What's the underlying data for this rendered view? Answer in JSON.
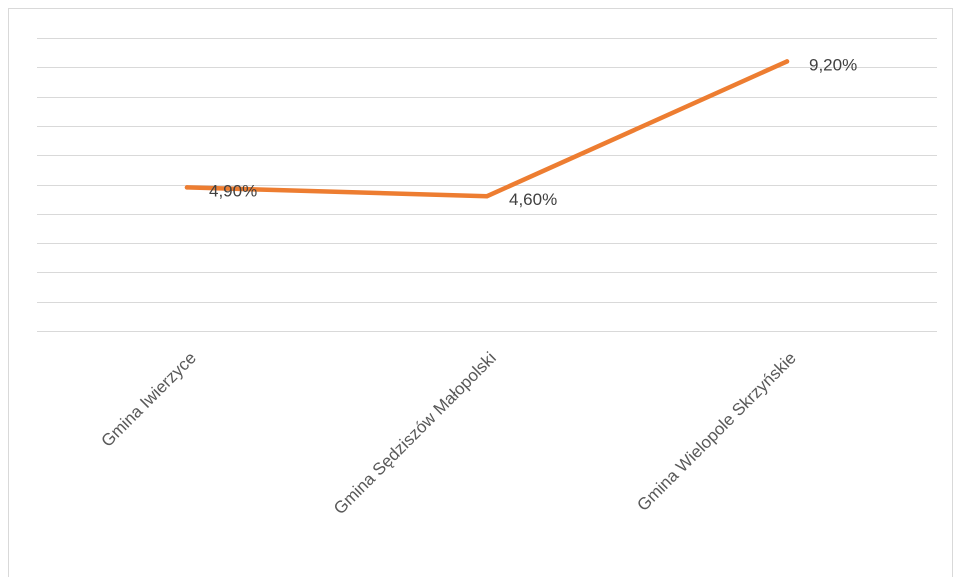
{
  "chart_data": {
    "type": "line",
    "categories": [
      "Gmina Iwierzyce",
      "Gmina Sędziszów Małopolski",
      "Gmina Wielopole Skrzyńskie"
    ],
    "series": [
      {
        "values": [
          4.9,
          4.6,
          9.2
        ],
        "labels": [
          "4,90%",
          "4,60%",
          "9,20%"
        ],
        "color": "#ED7D31"
      }
    ],
    "ylim": [
      0,
      10
    ],
    "grid": true,
    "legend": "none",
    "title": "",
    "xlabel": "",
    "ylabel": ""
  }
}
